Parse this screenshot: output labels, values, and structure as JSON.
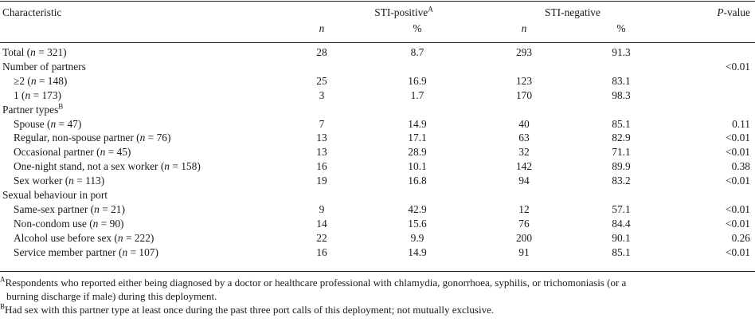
{
  "header": {
    "characteristic": "Characteristic",
    "sti_positive": "STI-positive",
    "sti_positive_sup": "A",
    "sti_negative": "STI-negative",
    "pvalue_italic": "P",
    "pvalue_rest": "-value",
    "n": "n",
    "pct": "%"
  },
  "rows": [
    {
      "pre": "Total (",
      "n_it": "n",
      "post": " = 321)",
      "indent": false,
      "sp_n": "28",
      "sp_p": "8.7",
      "sn_n": "293",
      "sn_p": "91.3",
      "pv": ""
    },
    {
      "pre": "Number of partners",
      "n_it": "",
      "post": "",
      "indent": false,
      "sp_n": "",
      "sp_p": "",
      "sn_n": "",
      "sn_p": "",
      "pv": "<0.01"
    },
    {
      "pre": "≥2 (",
      "n_it": "n",
      "post": " = 148)",
      "indent": true,
      "sp_n": "25",
      "sp_p": "16.9",
      "sn_n": "123",
      "sn_p": "83.1",
      "pv": ""
    },
    {
      "pre": "1 (",
      "n_it": "n",
      "post": " = 173)",
      "indent": true,
      "sp_n": "3",
      "sp_p": "1.7",
      "sn_n": "170",
      "sn_p": "98.3",
      "pv": ""
    },
    {
      "pre": "Partner types",
      "sup": "B",
      "n_it": "",
      "post": "",
      "indent": false,
      "sp_n": "",
      "sp_p": "",
      "sn_n": "",
      "sn_p": "",
      "pv": ""
    },
    {
      "pre": "Spouse (",
      "n_it": "n",
      "post": " = 47)",
      "indent": true,
      "sp_n": "7",
      "sp_p": "14.9",
      "sn_n": "40",
      "sn_p": "85.1",
      "pv": "0.11"
    },
    {
      "pre": "Regular, non-spouse partner (",
      "n_it": "n",
      "post": " = 76)",
      "indent": true,
      "sp_n": "13",
      "sp_p": "17.1",
      "sn_n": "63",
      "sn_p": "82.9",
      "pv": "<0.01"
    },
    {
      "pre": "Occasional partner (",
      "n_it": "n",
      "post": " = 45)",
      "indent": true,
      "sp_n": "13",
      "sp_p": "28.9",
      "sn_n": "32",
      "sn_p": "71.1",
      "pv": "<0.01"
    },
    {
      "pre": "One-night stand, not a sex worker (",
      "n_it": "n",
      "post": " = 158)",
      "indent": true,
      "sp_n": "16",
      "sp_p": "10.1",
      "sn_n": "142",
      "sn_p": "89.9",
      "pv": "0.38"
    },
    {
      "pre": "Sex worker (",
      "n_it": "n",
      "post": " = 113)",
      "indent": true,
      "sp_n": "19",
      "sp_p": "16.8",
      "sn_n": "94",
      "sn_p": "83.2",
      "pv": "<0.01"
    },
    {
      "pre": "Sexual behaviour in port",
      "n_it": "",
      "post": "",
      "indent": false,
      "sp_n": "",
      "sp_p": "",
      "sn_n": "",
      "sn_p": "",
      "pv": ""
    },
    {
      "pre": "Same-sex partner (",
      "n_it": "n",
      "post": " = 21)",
      "indent": true,
      "sp_n": "9",
      "sp_p": "42.9",
      "sn_n": "12",
      "sn_p": "57.1",
      "pv": "<0.01"
    },
    {
      "pre": "Non-condom use (",
      "n_it": "n",
      "post": " = 90)",
      "indent": true,
      "sp_n": "14",
      "sp_p": "15.6",
      "sn_n": "76",
      "sn_p": "84.4",
      "pv": "<0.01"
    },
    {
      "pre": "Alcohol use before sex (",
      "n_it": "n",
      "post": " = 222)",
      "indent": true,
      "sp_n": "22",
      "sp_p": "9.9",
      "sn_n": "200",
      "sn_p": "90.1",
      "pv": "0.26"
    },
    {
      "pre": "Service member partner (",
      "n_it": "n",
      "post": " = 107)",
      "indent": true,
      "sp_n": "16",
      "sp_p": "14.9",
      "sn_n": "91",
      "sn_p": "85.1",
      "pv": "<0.01"
    }
  ],
  "footnotes": [
    {
      "mark": "A",
      "line1": "Respondents who reported either being diagnosed by a doctor or healthcare professional with chlamydia, gonorrhoea, syphilis, or trichomoniasis (or a",
      "line2": "burning discharge if male) during this deployment."
    },
    {
      "mark": "B",
      "line1": "Had sex with this partner type at least once during the past three port calls of this deployment; not mutually exclusive.",
      "line2": ""
    }
  ]
}
